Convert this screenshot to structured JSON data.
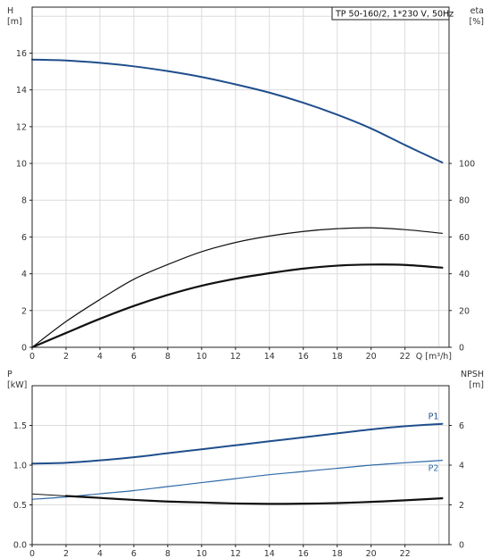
{
  "chart_data": [
    {
      "type": "line",
      "title": "TP 50-160/2, 1*230 V, 50Hz",
      "xlabel": "Q [m³/h]",
      "ylabel": "H\n[m]",
      "ylabel_right": "eta\n[%]",
      "xlim": [
        0,
        24.6
      ],
      "xticks": [
        0,
        2,
        4,
        6,
        8,
        10,
        12,
        14,
        16,
        18,
        20,
        22
      ],
      "ylim": [
        0,
        18.5
      ],
      "yticks": [
        0,
        2,
        4,
        6,
        8,
        10,
        12,
        14,
        16
      ],
      "ylim_right": [
        0,
        185
      ],
      "yticks_right": [
        0,
        20,
        40,
        60,
        80,
        100
      ],
      "grid": true,
      "series": [
        {
          "axis": "left",
          "color": "#1f4e8c",
          "width": 2,
          "x": [
            0,
            2,
            4,
            6,
            8,
            10,
            12,
            14,
            16,
            18,
            20,
            22,
            24.2
          ],
          "y": [
            15.65,
            15.6,
            15.47,
            15.28,
            15.02,
            14.7,
            14.3,
            13.85,
            13.3,
            12.65,
            11.9,
            11.0,
            10.05
          ]
        },
        {
          "axis": "right",
          "color": "#111111",
          "width": 1.2,
          "x": [
            0,
            2,
            4,
            6,
            8,
            10,
            12,
            14,
            16,
            18,
            20,
            22,
            24.2
          ],
          "y": [
            0,
            14,
            26,
            37,
            45,
            52,
            57,
            60.5,
            63,
            64.5,
            65,
            64,
            62
          ]
        },
        {
          "axis": "right",
          "color": "#111111",
          "width": 2.2,
          "x": [
            0,
            2,
            4,
            6,
            8,
            10,
            12,
            14,
            16,
            18,
            20,
            22,
            24.2
          ],
          "y": [
            0,
            7.8,
            15.5,
            22.5,
            28.5,
            33.5,
            37.3,
            40.3,
            42.8,
            44.4,
            45,
            44.8,
            43.3
          ]
        }
      ]
    },
    {
      "type": "line",
      "title": "",
      "xlabel": "",
      "ylabel": "P\n[kW]",
      "ylabel_right": "NPSH\n[m]",
      "xlim": [
        0,
        24.6
      ],
      "xticks": [
        0,
        2,
        4,
        6,
        8,
        10,
        12,
        14,
        16,
        18,
        20,
        22
      ],
      "ylim": [
        0,
        2.0
      ],
      "yticks": [
        0.0,
        0.5,
        1.0,
        1.5
      ],
      "ylim_right": [
        0,
        8
      ],
      "yticks_right": [
        0,
        2,
        4,
        6
      ],
      "grid": true,
      "series": [
        {
          "name": "P1",
          "axis": "left",
          "color": "#1f4e8c",
          "width": 2,
          "x": [
            0,
            2,
            4,
            6,
            8,
            10,
            12,
            14,
            16,
            18,
            20,
            22,
            24.2
          ],
          "y": [
            1.02,
            1.03,
            1.06,
            1.1,
            1.15,
            1.2,
            1.25,
            1.3,
            1.35,
            1.4,
            1.45,
            1.49,
            1.52
          ]
        },
        {
          "name": "P2",
          "axis": "left",
          "color": "#2f6aa8",
          "width": 1.2,
          "x": [
            0,
            2,
            4,
            6,
            8,
            10,
            12,
            14,
            16,
            18,
            20,
            22,
            24.2
          ],
          "y": [
            0.57,
            0.6,
            0.64,
            0.68,
            0.73,
            0.78,
            0.83,
            0.88,
            0.92,
            0.96,
            1.0,
            1.03,
            1.06
          ]
        },
        {
          "axis": "right",
          "color": "#111111",
          "width": 1,
          "x": [
            0,
            2
          ],
          "y": [
            2.55,
            2.45
          ]
        },
        {
          "axis": "right",
          "color": "#111111",
          "width": 2.2,
          "x": [
            2,
            4,
            6,
            8,
            10,
            12,
            14,
            16,
            18,
            20,
            22,
            24.2
          ],
          "y": [
            2.45,
            2.35,
            2.25,
            2.17,
            2.12,
            2.07,
            2.05,
            2.06,
            2.09,
            2.15,
            2.23,
            2.33
          ]
        }
      ]
    }
  ]
}
